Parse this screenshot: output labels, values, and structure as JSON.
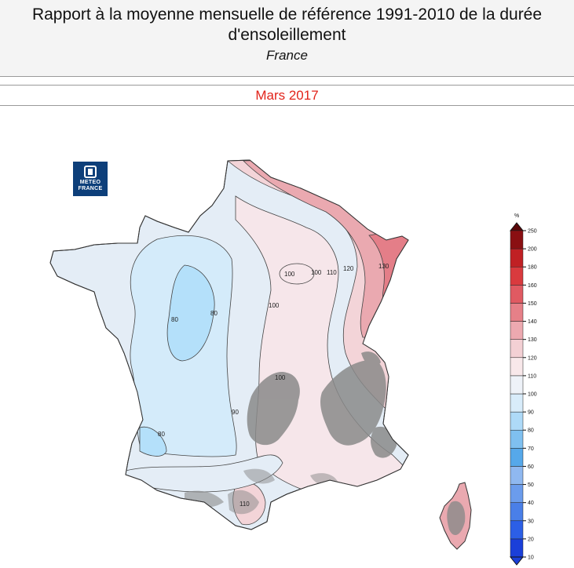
{
  "header": {
    "title_line1": "Rapport à la moyenne mensuelle de référence 1991-2010 de la durée",
    "title_line2": "d'ensoleillement",
    "subtitle": "France"
  },
  "period": "Mars 2017",
  "logo": {
    "line1": "METEO",
    "line2": "FRANCE"
  },
  "contour_labels": {
    "l80a": "80",
    "l80b": "80",
    "l80c": "80",
    "l90a": "90",
    "l100a": "100",
    "l100b": "100",
    "l100c": "100",
    "l100d": "100",
    "l110a": "110",
    "l110b": "110",
    "l120": "120",
    "l130": "130"
  },
  "legend": {
    "unit": "%",
    "levels": [
      "10",
      "20",
      "30",
      "40",
      "50",
      "60",
      "70",
      "80",
      "90",
      "100",
      "110",
      "120",
      "130",
      "140",
      "150",
      "160",
      "180",
      "200",
      "250"
    ],
    "colors": [
      "#1a3fd9",
      "#2c5fe6",
      "#4a7fe8",
      "#6b9cec",
      "#8fb8f0",
      "#56a8ea",
      "#7fc0f0",
      "#aedaf8",
      "#d8ecfa",
      "#eef2f8",
      "#f8e8ea",
      "#f3d0d4",
      "#eda9b0",
      "#e68088",
      "#e05a62",
      "#d93a3e",
      "#c02024",
      "#8a0f12",
      "#5a0709"
    ]
  }
}
